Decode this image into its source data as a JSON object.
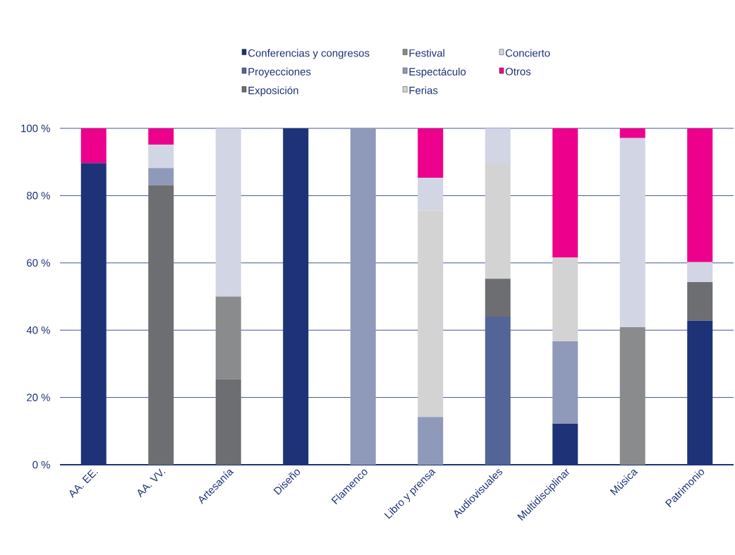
{
  "chart_data": {
    "type": "bar",
    "stacked": true,
    "grid": "y",
    "legend": "top",
    "categories": [
      "AA. EE.",
      "AA. VV.",
      "Artesanía",
      "Diseño",
      "Flamenco",
      "Libro y prensa",
      "Audiovisuales",
      "Multidisciplinar",
      "Música",
      "Patrimonio"
    ],
    "ylim": [
      0,
      100
    ],
    "yticks": [
      {
        "value": 0,
        "label": "0 %"
      },
      {
        "value": 20,
        "label": "20 %"
      },
      {
        "value": 40,
        "label": "40 %"
      },
      {
        "value": 60,
        "label": "60 %"
      },
      {
        "value": 80,
        "label": "80 %"
      },
      {
        "value": 100,
        "label": "100 %"
      }
    ],
    "series": [
      {
        "name": "Conferencias y congresos",
        "color": "#1e3278",
        "values": [
          89.7,
          null,
          null,
          100,
          null,
          null,
          null,
          12.2,
          null,
          42.8
        ]
      },
      {
        "name": "Proyecciones",
        "color": "#536597",
        "values": [
          null,
          null,
          null,
          null,
          null,
          null,
          44.0,
          null,
          null,
          null
        ]
      },
      {
        "name": "Exposición",
        "color": "#6d6e71",
        "values": [
          null,
          83.1,
          25.4,
          null,
          null,
          null,
          11.3,
          null,
          null,
          11.5
        ]
      },
      {
        "name": "Festival",
        "color": "#8a8b8c",
        "values": [
          null,
          null,
          24.6,
          null,
          null,
          null,
          null,
          null,
          40.9,
          null
        ]
      },
      {
        "name": "Espectáculo",
        "color": "#8f9aba",
        "values": [
          null,
          5.1,
          null,
          null,
          100,
          14.2,
          null,
          24.5,
          null,
          null
        ]
      },
      {
        "name": "Ferias",
        "color": "#d3d3d3",
        "values": [
          null,
          null,
          null,
          null,
          null,
          61.4,
          34.2,
          24.9,
          null,
          null
        ]
      },
      {
        "name": "Concierto",
        "color": "#d1d5e4",
        "values": [
          null,
          7.0,
          50.0,
          null,
          null,
          9.7,
          10.5,
          null,
          56.2,
          5.9
        ]
      },
      {
        "name": "Otros",
        "color": "#ec008c",
        "values": [
          10.3,
          4.8,
          null,
          null,
          null,
          14.7,
          null,
          38.4,
          2.9,
          39.8
        ]
      }
    ]
  }
}
